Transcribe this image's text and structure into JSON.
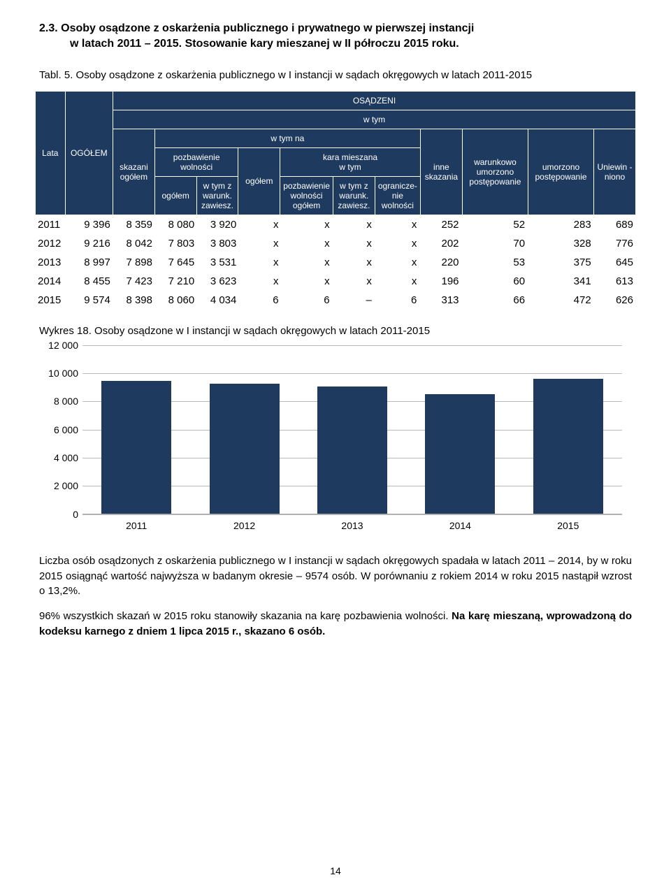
{
  "section_title_l1": "2.3. Osoby osądzone z oskarżenia publicznego i prywatnego w pierwszej instancji",
  "section_title_l2": "w latach 2011 – 2015. Stosowanie kary mieszanej w II półroczu 2015 roku.",
  "table_caption": "Tabl. 5. Osoby osądzone z oskarżenia publicznego w I instancji w sądach okręgowych w latach 2011-2015",
  "headers": {
    "lata": "Lata",
    "ogolem_caps": "OGÓŁEM",
    "osadzeni": "OSĄDZENI",
    "w_tym": "w tym",
    "skazani_ogolem": "skazani ogółem",
    "w_tym_na": "w tym na",
    "pozbawienie_wolnosci": "pozbawienie wolności",
    "ogolem": "ogółem",
    "w_tym_z_warunk_zawiesz": "w tym z warunk. zawiesz.",
    "kara_mieszana": "kara mieszana",
    "pozbawienie_wolnosci_ogolem": "pozbawienie wolności ogółem",
    "ograniczenie_wolnosci": "ogranicze-nie wolności",
    "inne_skazania": "inne skazania",
    "warunkowo_umorzono": "warunkowo umorzono postępowanie",
    "umorzono_postepowanie": "umorzono postępowanie",
    "uniewinniono": "Uniewin\n-niono"
  },
  "rows": [
    [
      "2011",
      "9 396",
      "8 359",
      "8 080",
      "3 920",
      "x",
      "x",
      "x",
      "x",
      "252",
      "52",
      "283",
      "689"
    ],
    [
      "2012",
      "9 216",
      "8 042",
      "7 803",
      "3 803",
      "x",
      "x",
      "x",
      "x",
      "202",
      "70",
      "328",
      "776"
    ],
    [
      "2013",
      "8 997",
      "7 898",
      "7 645",
      "3 531",
      "x",
      "x",
      "x",
      "x",
      "220",
      "53",
      "375",
      "645"
    ],
    [
      "2014",
      "8 455",
      "7 423",
      "7 210",
      "3 623",
      "x",
      "x",
      "x",
      "x",
      "196",
      "60",
      "341",
      "613"
    ],
    [
      "2015",
      "9 574",
      "8 398",
      "8 060",
      "4 034",
      "6",
      "6",
      "–",
      "6",
      "313",
      "66",
      "472",
      "626"
    ]
  ],
  "chart": {
    "caption": "Wykres 18. Osoby osądzone w I instancji w sądach okręgowych  w latach 2011-2015",
    "y_max": 12000,
    "y_min": 0,
    "y_step": 2000,
    "y_labels": [
      "0",
      "2 000",
      "4 000",
      "6 000",
      "8 000",
      "10 000",
      "12 000"
    ],
    "categories": [
      "2011",
      "2012",
      "2013",
      "2014",
      "2015"
    ],
    "values": [
      9396,
      9216,
      8997,
      8455,
      9574
    ],
    "bar_color": "#1f3a5f",
    "grid_color": "#b8b8b8",
    "label_fontsize": 14
  },
  "body": {
    "p1": "Liczba osób osądzonych z oskarżenia publicznego w I instancji w sądach okręgowych spadała w latach 2011 – 2014, by w roku 2015 osiągnąć wartość najwyższa w badanym okresie – 9574 osób. W porównaniu z rokiem 2014 w roku 2015 nastąpił wzrost o 13,2%.",
    "p2_a": "96% wszystkich skazań w 2015 roku stanowiły skazania na karę pozbawienia wolności. ",
    "p2_b": "Na karę mieszaną, wprowadzoną do kodeksu karnego z dniem 1 lipca 2015 r., skazano 6 osób."
  },
  "page_number": "14"
}
